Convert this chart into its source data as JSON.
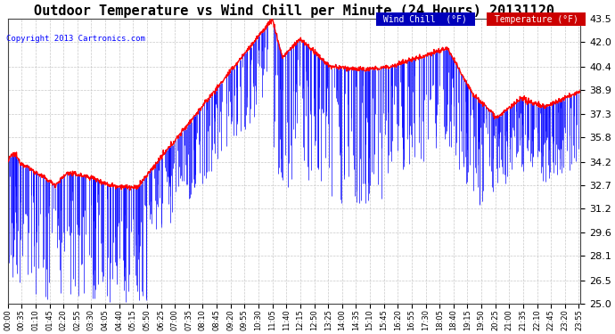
{
  "title": "Outdoor Temperature vs Wind Chill per Minute (24 Hours) 20131120",
  "copyright": "Copyright 2013 Cartronics.com",
  "ylim": [
    25.0,
    43.5
  ],
  "yticks": [
    25.0,
    26.5,
    28.1,
    29.6,
    31.2,
    32.7,
    34.2,
    35.8,
    37.3,
    38.9,
    40.4,
    42.0,
    43.5
  ],
  "bg_color": "#FFFFFF",
  "plot_bg_color": "#FFFFFF",
  "grid_color": "#BBBBBB",
  "title_fontsize": 11,
  "wind_chill_color": "#0000FF",
  "temp_color": "#FF0000",
  "wind_chill_legend_bg": "#0000BB",
  "temp_legend_bg": "#CC0000",
  "minutes_per_day": 1440,
  "tick_step_minutes": 35
}
